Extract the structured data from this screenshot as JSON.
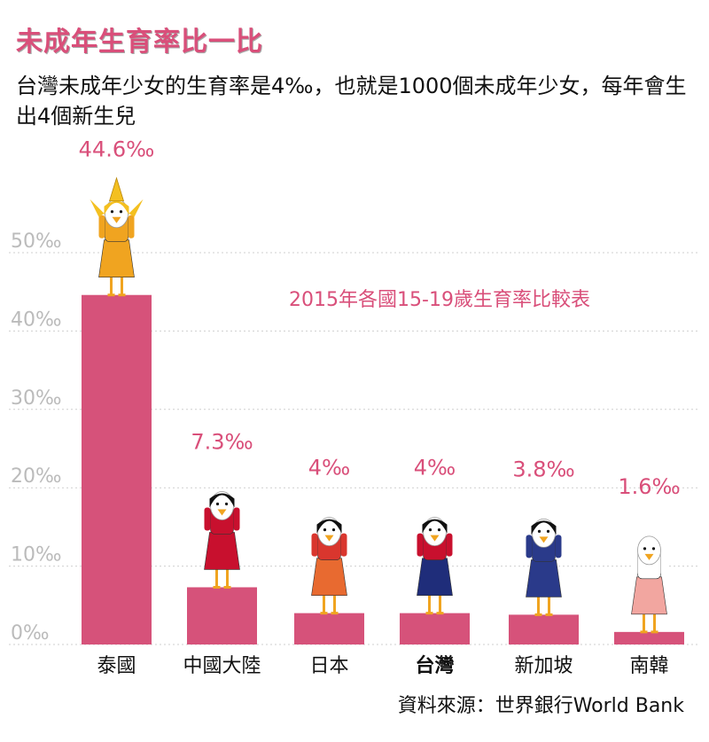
{
  "header": {
    "title": "未成年生育率比一比",
    "subtitle": "台灣未成年少女的生育率是4‰，也就是1000個未成年少女，每年會生出4個新生兒"
  },
  "footer": {
    "source": "資料來源：世界銀行World Bank"
  },
  "chart_data": {
    "type": "bar",
    "title": "2015年各國15-19歲生育率比較表",
    "categories": [
      "泰國",
      "中國大陸",
      "日本",
      "台灣",
      "新加坡",
      "南韓"
    ],
    "values": [
      44.6,
      7.3,
      4,
      4,
      3.8,
      1.6
    ],
    "value_labels": [
      "44.6‰",
      "7.3‰",
      "4‰",
      "4‰",
      "3.8‰",
      "1.6‰"
    ],
    "yticks": [
      0,
      10,
      20,
      30,
      40,
      50
    ],
    "ytick_labels": [
      "0‰",
      "10‰",
      "20‰",
      "30‰",
      "40‰",
      "50‰"
    ],
    "ylim": [
      0,
      50
    ],
    "xlabel": "",
    "ylabel": "",
    "grid": true,
    "colors": {
      "bar": "#d6527a",
      "value_label": "#d94f7a",
      "axis_label": "#111111",
      "tick_label": "#bbbbbb",
      "grid": "#cfcfcf"
    }
  },
  "figures": [
    {
      "country": "泰國",
      "icon": "thai-dancer-bird-icon",
      "hair": "#f4c020",
      "body": "#f0a420",
      "skirt": "#f0a420"
    },
    {
      "country": "中國大陸",
      "icon": "qipao-bird-icon",
      "hair": "#111111",
      "body": "#c8102e",
      "skirt": "#c8102e"
    },
    {
      "country": "日本",
      "icon": "kimono-bird-icon",
      "hair": "#111111",
      "body": "#d9362e",
      "skirt": "#e86a30"
    },
    {
      "country": "台灣",
      "icon": "schoolgirl-bird-icon",
      "hair": "#111111",
      "body": "#c8102e",
      "skirt": "#1f2d7a"
    },
    {
      "country": "新加坡",
      "icon": "kebaya-bird-icon",
      "hair": "#111111",
      "body": "#2a3a8a",
      "skirt": "#2a3a8a"
    },
    {
      "country": "南韓",
      "icon": "hanbok-bird-icon",
      "hair": "#ffffff",
      "body": "#ffffff",
      "skirt": "#f2a6a0"
    }
  ]
}
